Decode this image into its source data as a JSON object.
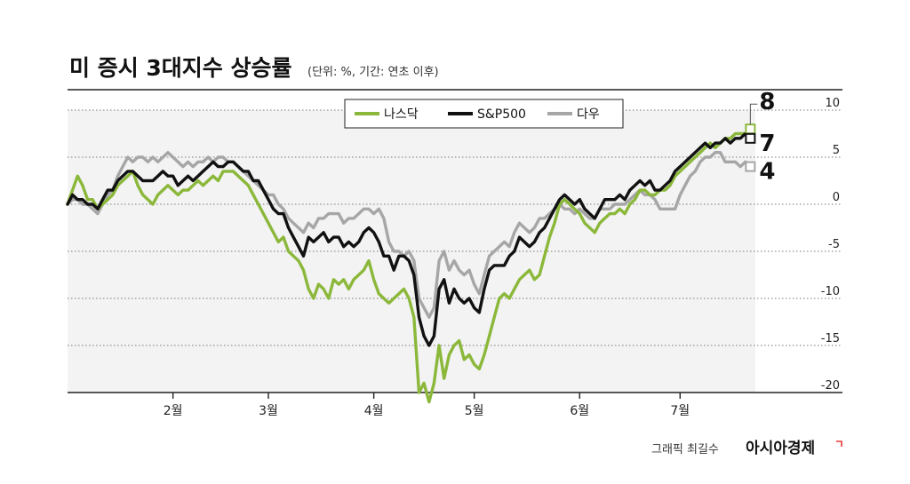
{
  "colors": {
    "nasdaq": "#8bb83a",
    "sp500": "#111111",
    "dow": "#a6a6a6",
    "brand_mark": "#e53935"
  },
  "title": {
    "main": "미 증시 3대지수 상승률",
    "unit": "(단위: %, 기간: 연초 이후)"
  },
  "credit": {
    "graphic": "그래픽 최길수",
    "brand": "아시아경제"
  },
  "chart_data": {
    "type": "line",
    "title": "미 증시 3대지수 상승률",
    "subtitle": "(단위: %, 기간: 연초 이후)",
    "xlabel": "",
    "ylabel": "",
    "ylim": [
      -20,
      10
    ],
    "yticks": [
      "10",
      "5",
      "0",
      "-5",
      "-10",
      "-15",
      "-20"
    ],
    "ytick_values": [
      10,
      5,
      0,
      -5,
      -10,
      -15,
      -20
    ],
    "x_range": [
      0,
      137
    ],
    "xticks": [
      {
        "label": "2월",
        "x": 21
      },
      {
        "label": "3월",
        "x": 40
      },
      {
        "label": "4월",
        "x": 61
      },
      {
        "label": "5월",
        "x": 81
      },
      {
        "label": "6월",
        "x": 102
      },
      {
        "label": "7월",
        "x": 122
      }
    ],
    "legend": {
      "placement": "top-center",
      "entries": [
        "나스닥",
        "S&P500",
        "다우"
      ]
    },
    "end_labels": {
      "nasdaq": "8",
      "sp500": "7",
      "dow": "4"
    },
    "grid": "horizontal-dotted",
    "series": [
      {
        "name": "나스닥",
        "color": "#8bb83a",
        "values": [
          0,
          1.5,
          3,
          2,
          0.5,
          0.5,
          -0.5,
          0,
          0.5,
          1,
          2,
          2.5,
          3,
          3.5,
          2,
          1,
          0.5,
          0,
          1,
          1.5,
          2,
          1.5,
          1,
          1.5,
          1.5,
          2,
          2.5,
          2,
          2.5,
          3,
          2.5,
          3.5,
          3.5,
          3.5,
          3,
          2.5,
          2,
          1,
          0,
          -1,
          -2,
          -3,
          -4,
          -3.5,
          -5,
          -5.5,
          -6,
          -7,
          -9,
          -10,
          -8.5,
          -9,
          -10,
          -8,
          -8.5,
          -8,
          -9,
          -8,
          -7.5,
          -7,
          -6,
          -8,
          -9.5,
          -10,
          -10.5,
          -10,
          -9.5,
          -9,
          -10,
          -12,
          -20,
          -19,
          -21,
          -19,
          -15,
          -18.5,
          -16,
          -15,
          -14.5,
          -16.5,
          -16,
          -17,
          -17.5,
          -16,
          -14,
          -12,
          -10,
          -9.5,
          -10,
          -9,
          -8,
          -7.5,
          -7,
          -8,
          -7.5,
          -5.5,
          -3.5,
          -2,
          0,
          0.5,
          0,
          -0.5,
          -1,
          -2,
          -2.5,
          -3,
          -2,
          -1.5,
          -1,
          -1,
          -0.5,
          -1,
          0,
          0.5,
          1.5,
          1.5,
          1,
          1,
          1.5,
          1.5,
          2,
          3,
          3.5,
          4,
          4.5,
          5,
          5.5,
          6,
          6.5,
          6,
          6.5,
          7,
          7,
          7.5,
          7.5,
          7.5,
          8
        ]
      },
      {
        "name": "S&P500",
        "color": "#111111",
        "values": [
          0,
          1,
          0.5,
          0.5,
          0,
          0,
          -0.5,
          0.5,
          1.5,
          1.5,
          2.5,
          3,
          3.5,
          3.5,
          3,
          2.5,
          2.5,
          2.5,
          3,
          3.5,
          3,
          3,
          2,
          2.5,
          3,
          2.5,
          3,
          3.5,
          4,
          4.5,
          4,
          4,
          4.5,
          4.5,
          4,
          3.5,
          3.5,
          2.5,
          2.5,
          1.5,
          0.5,
          -0.5,
          -1,
          -1,
          -2.5,
          -3.5,
          -4.5,
          -5.5,
          -3.5,
          -4,
          -3.5,
          -3,
          -4,
          -3.5,
          -3.5,
          -4.5,
          -4,
          -4.5,
          -4,
          -3,
          -2.5,
          -3,
          -4,
          -5.5,
          -5.5,
          -7,
          -5.5,
          -5.5,
          -6,
          -7.5,
          -12,
          -14,
          -15,
          -14,
          -9,
          -8,
          -10.5,
          -9,
          -10,
          -10.5,
          -10,
          -11,
          -11.5,
          -9,
          -7,
          -6.5,
          -6.5,
          -6.5,
          -5.5,
          -5,
          -3.5,
          -4,
          -4.5,
          -4,
          -3,
          -2.5,
          -1.5,
          -0.5,
          0.5,
          1,
          0.5,
          0,
          0.5,
          -0.5,
          -1,
          -1.5,
          -0.5,
          0.5,
          0.5,
          0.5,
          1,
          0.5,
          1.5,
          2,
          2.5,
          2,
          2.5,
          1.5,
          1.5,
          2,
          2.5,
          3.5,
          4,
          4.5,
          5,
          5.5,
          6,
          6.5,
          6,
          6.5,
          6.5,
          7,
          6.5,
          7,
          7,
          7.5,
          7
        ]
      },
      {
        "name": "다우",
        "color": "#a6a6a6",
        "values": [
          0,
          0.5,
          0.5,
          0,
          0,
          -0.5,
          -1,
          0,
          1,
          1.5,
          3,
          4,
          5,
          4.5,
          5,
          5,
          4.5,
          5,
          4.5,
          5,
          5.5,
          5,
          4.5,
          4,
          4.5,
          4,
          4.5,
          4.5,
          5,
          4.5,
          5,
          5,
          4.5,
          4.5,
          4,
          3.5,
          3,
          2.5,
          2,
          1.5,
          1,
          1,
          0,
          -0.5,
          -1.5,
          -2,
          -2.5,
          -3,
          -2,
          -2.5,
          -1.5,
          -1.5,
          -1,
          -1,
          -1,
          -2,
          -1.5,
          -1.5,
          -1,
          -0.5,
          -0.5,
          -1,
          -0.5,
          -1.5,
          -4,
          -5,
          -5,
          -5.5,
          -5,
          -6,
          -10,
          -11,
          -12,
          -11,
          -6,
          -5,
          -7,
          -6,
          -7,
          -7.5,
          -7,
          -8.5,
          -9.5,
          -7.5,
          -5.5,
          -5,
          -4.5,
          -4,
          -4.5,
          -3,
          -2,
          -2.5,
          -3,
          -2.5,
          -1.5,
          -1.5,
          -1,
          -0.5,
          0,
          -0.5,
          -0.5,
          -1,
          -0.5,
          -1,
          -1.5,
          -1.5,
          -0.5,
          -0.5,
          -0.5,
          0,
          0,
          0,
          0.5,
          1,
          1.5,
          1,
          1,
          0.5,
          -0.5,
          -0.5,
          -0.5,
          -0.5,
          1,
          2,
          3,
          3.5,
          4.5,
          5,
          5,
          5.5,
          5.5,
          4.5,
          4.5,
          4.5,
          4,
          4.5,
          4
        ]
      }
    ]
  }
}
